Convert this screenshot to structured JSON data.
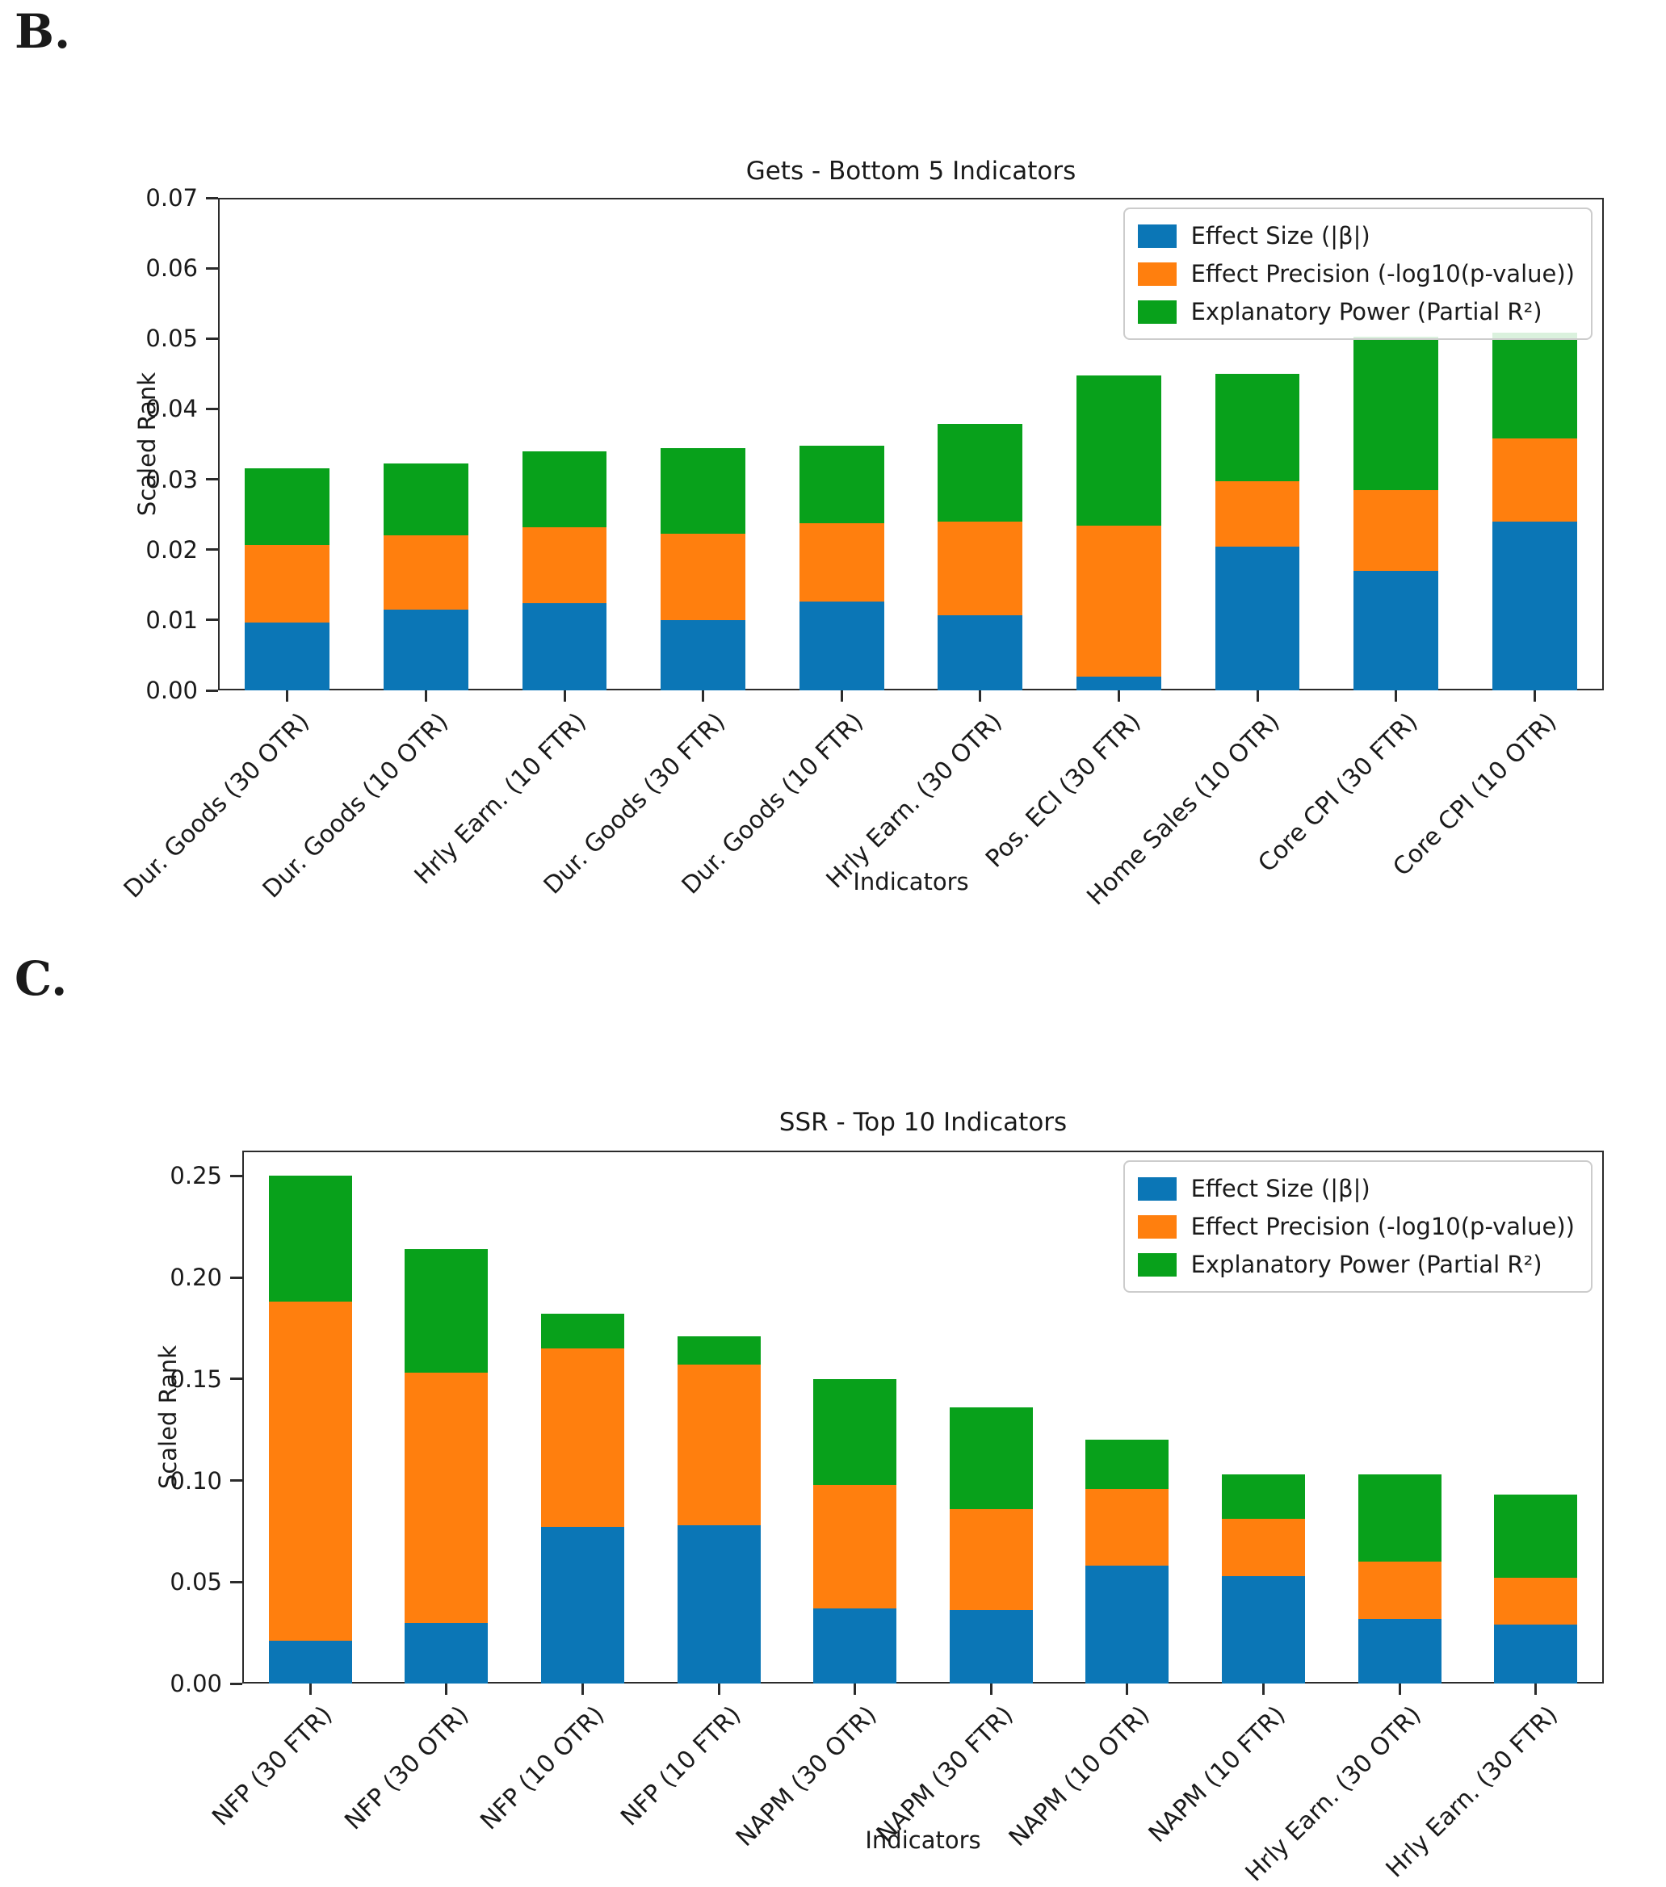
{
  "panels": [
    {
      "label": "B."
    },
    {
      "label": "C."
    }
  ],
  "chart_data": [
    {
      "type": "bar",
      "stacked": true,
      "title": "Gets - Bottom 5 Indicators",
      "xlabel": "Indicators",
      "ylabel": "Scaled Rank",
      "ylim": [
        0,
        0.07
      ],
      "grid": false,
      "legend_position": "upper right",
      "ytick_values": [
        0.0,
        0.01,
        0.02,
        0.03,
        0.04,
        0.05,
        0.06,
        0.07
      ],
      "ytick_labels": [
        "0.00",
        "0.01",
        "0.02",
        "0.03",
        "0.04",
        "0.05",
        "0.06",
        "0.07"
      ],
      "categories": [
        "Dur. Goods (30 OTR)",
        "Dur. Goods (10 OTR)",
        "Hrly Earn. (10 FTR)",
        "Dur. Goods (30 FTR)",
        "Dur. Goods (10 FTR)",
        "Hrly Earn. (30 OTR)",
        "Pos. ECI (30 FTR)",
        "Home Sales (10 OTR)",
        "Core CPI (30 FTR)",
        "Core CPI (10 OTR)"
      ],
      "series": [
        {
          "name": "Effect Size (|β|)",
          "color": "#0b76b6",
          "values": [
            0.0096,
            0.0115,
            0.0124,
            0.01,
            0.0126,
            0.0107,
            0.002,
            0.0204,
            0.017,
            0.024
          ]
        },
        {
          "name": "Effect Precision (-log10(p-value))",
          "color": "#ff7f0e",
          "values": [
            0.011,
            0.0105,
            0.0108,
            0.0123,
            0.0112,
            0.0133,
            0.0214,
            0.0093,
            0.0115,
            0.0118
          ]
        },
        {
          "name": "Explanatory Power (Partial R²)",
          "color": "#08a11b",
          "values": [
            0.011,
            0.0102,
            0.0108,
            0.0121,
            0.011,
            0.0139,
            0.0213,
            0.0153,
            0.0218,
            0.015
          ]
        }
      ]
    },
    {
      "type": "bar",
      "stacked": true,
      "title": "SSR - Top 10 Indicators",
      "xlabel": "Indicators",
      "ylabel": "Scaled Rank",
      "ylim": [
        0,
        0.2625
      ],
      "grid": false,
      "legend_position": "upper right",
      "ytick_values": [
        0.0,
        0.05,
        0.1,
        0.15,
        0.2,
        0.25
      ],
      "ytick_labels": [
        "0.00",
        "0.05",
        "0.10",
        "0.15",
        "0.20",
        "0.25"
      ],
      "categories": [
        "NFP (30 FTR)",
        "NFP (30 OTR)",
        "NFP (10 OTR)",
        "NFP (10 FTR)",
        "NAPM (30 OTR)",
        "NAPM (30 FTR)",
        "NAPM (10 OTR)",
        "NAPM (10 FTR)",
        "Hrly Earn. (30 OTR)",
        "Hrly Earn. (30 FTR)"
      ],
      "series": [
        {
          "name": "Effect Size (|β|)",
          "color": "#0b76b6",
          "values": [
            0.021,
            0.03,
            0.077,
            0.078,
            0.037,
            0.036,
            0.058,
            0.053,
            0.032,
            0.029
          ]
        },
        {
          "name": "Effect Precision (-log10(p-value))",
          "color": "#ff7f0e",
          "values": [
            0.167,
            0.123,
            0.088,
            0.079,
            0.061,
            0.05,
            0.038,
            0.028,
            0.028,
            0.023
          ]
        },
        {
          "name": "Explanatory Power (Partial R²)",
          "color": "#08a11b",
          "values": [
            0.062,
            0.061,
            0.017,
            0.014,
            0.052,
            0.05,
            0.024,
            0.022,
            0.043,
            0.041
          ]
        }
      ]
    }
  ]
}
